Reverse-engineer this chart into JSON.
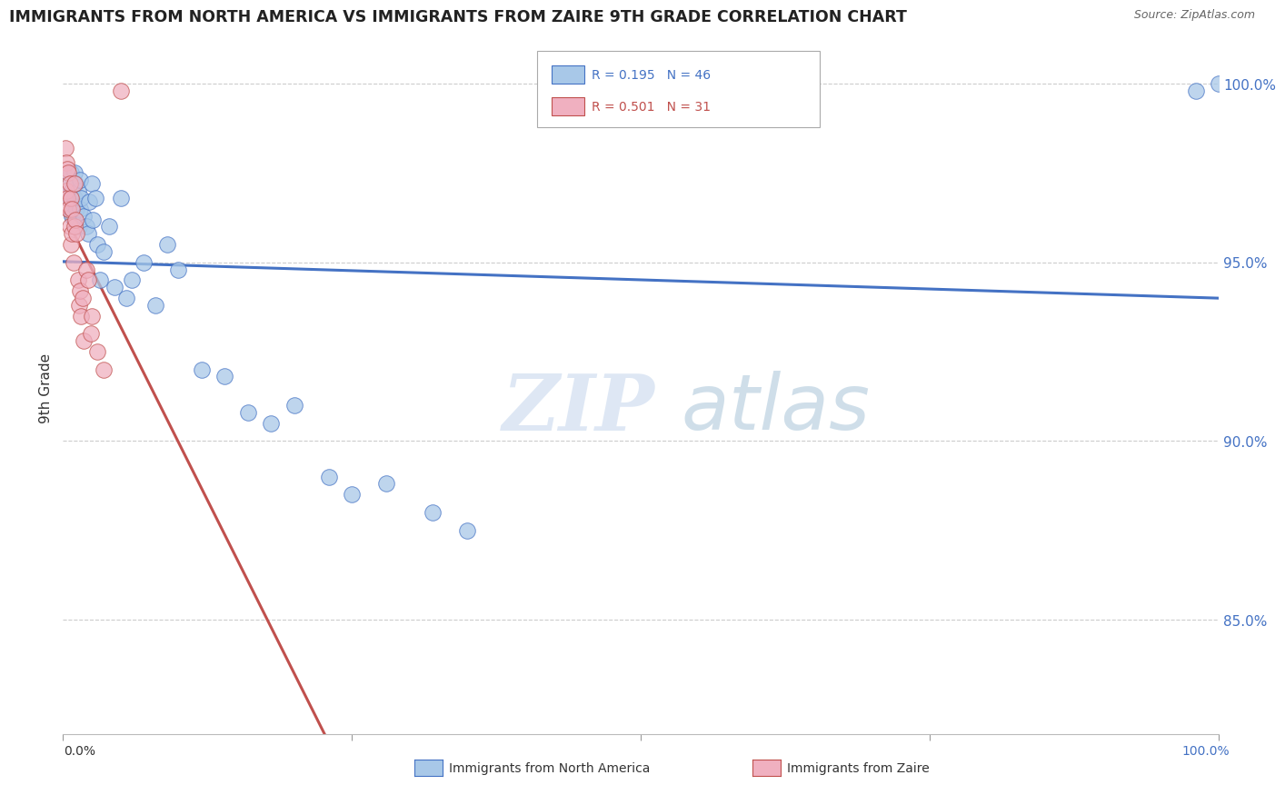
{
  "title": "IMMIGRANTS FROM NORTH AMERICA VS IMMIGRANTS FROM ZAIRE 9TH GRADE CORRELATION CHART",
  "source": "Source: ZipAtlas.com",
  "ylabel": "9th Grade",
  "blue_label": "Immigrants from North America",
  "pink_label": "Immigrants from Zaire",
  "blue_R": 0.195,
  "blue_N": 46,
  "pink_R": 0.501,
  "pink_N": 31,
  "blue_color": "#a8c8e8",
  "pink_color": "#f0b0c0",
  "blue_line_color": "#4472c4",
  "pink_line_color": "#c0504d",
  "watermark_zip": "ZIP",
  "watermark_atlas": "atlas",
  "xlim": [
    0.0,
    1.0
  ],
  "ylim": [
    0.818,
    1.012
  ],
  "ytick_values": [
    0.85,
    0.9,
    0.95,
    1.0
  ],
  "ytick_labels": [
    "85.0%",
    "90.0%",
    "95.0%",
    "100.0%"
  ],
  "blue_x": [
    0.005,
    0.006,
    0.007,
    0.008,
    0.008,
    0.009,
    0.01,
    0.01,
    0.011,
    0.012,
    0.013,
    0.014,
    0.015,
    0.015,
    0.016,
    0.018,
    0.02,
    0.022,
    0.023,
    0.025,
    0.026,
    0.028,
    0.03,
    0.032,
    0.035,
    0.04,
    0.045,
    0.05,
    0.055,
    0.06,
    0.07,
    0.08,
    0.09,
    0.1,
    0.12,
    0.14,
    0.16,
    0.18,
    0.2,
    0.23,
    0.25,
    0.28,
    0.32,
    0.35,
    0.98,
    1.0
  ],
  "blue_y": [
    0.972,
    0.968,
    0.975,
    0.97,
    0.963,
    0.966,
    0.975,
    0.968,
    0.972,
    0.965,
    0.97,
    0.96,
    0.973,
    0.965,
    0.968,
    0.963,
    0.96,
    0.958,
    0.967,
    0.972,
    0.962,
    0.968,
    0.955,
    0.945,
    0.953,
    0.96,
    0.943,
    0.968,
    0.94,
    0.945,
    0.95,
    0.938,
    0.955,
    0.948,
    0.92,
    0.918,
    0.908,
    0.905,
    0.91,
    0.89,
    0.885,
    0.888,
    0.88,
    0.875,
    0.998,
    1.0
  ],
  "pink_x": [
    0.002,
    0.003,
    0.003,
    0.004,
    0.004,
    0.005,
    0.005,
    0.006,
    0.006,
    0.007,
    0.007,
    0.008,
    0.008,
    0.009,
    0.01,
    0.01,
    0.011,
    0.012,
    0.013,
    0.014,
    0.015,
    0.016,
    0.017,
    0.018,
    0.02,
    0.022,
    0.024,
    0.025,
    0.03,
    0.035,
    0.05
  ],
  "pink_y": [
    0.982,
    0.978,
    0.97,
    0.976,
    0.968,
    0.975,
    0.965,
    0.972,
    0.96,
    0.968,
    0.955,
    0.965,
    0.958,
    0.95,
    0.972,
    0.96,
    0.962,
    0.958,
    0.945,
    0.938,
    0.942,
    0.935,
    0.94,
    0.928,
    0.948,
    0.945,
    0.93,
    0.935,
    0.925,
    0.92,
    0.998
  ]
}
